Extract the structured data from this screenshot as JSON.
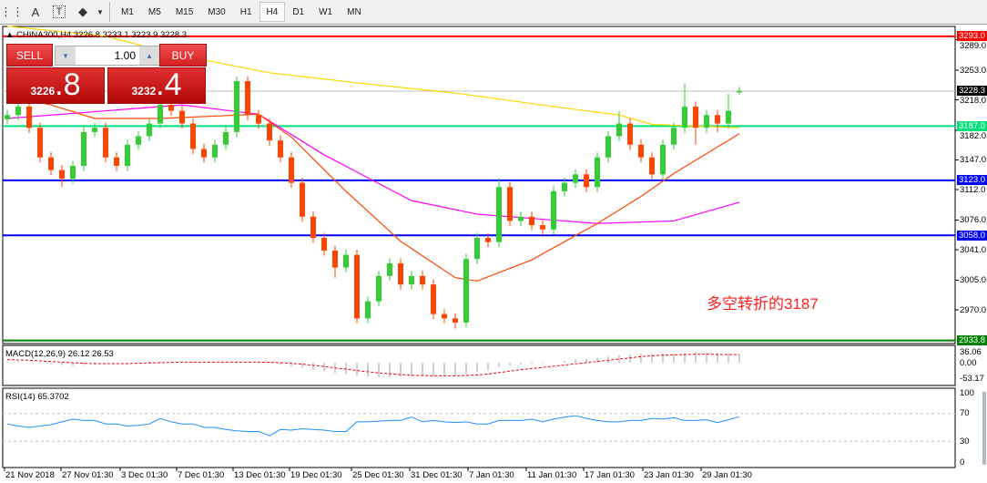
{
  "toolbar": {
    "icons": [
      "grid-icon",
      "text-icon",
      "text-label-icon",
      "arrows-icon",
      "dropdown-icon"
    ],
    "text_glyph": "A",
    "label_glyph": "T",
    "timeframes": [
      "M1",
      "M5",
      "M15",
      "M30",
      "H1",
      "H4",
      "D1",
      "W1",
      "MN"
    ],
    "active_timeframe": "H4"
  },
  "chart_header": {
    "symbol_line": "CHINA300,H4  3226.8 3233.1 3223.9 3228.3"
  },
  "trade_panel": {
    "sell_label": "SELL",
    "buy_label": "BUY",
    "lots": "1.00",
    "sell_price_small": "3226",
    "sell_price_big": ".8",
    "buy_price_small": "3232",
    "buy_price_big": ".4"
  },
  "annotation": "多空转折的3187",
  "macd_label": "MACD(12,26,9) 26.12 26.53",
  "rsi_label": "RSI(14) 65.3702",
  "chart_data": {
    "type": "candlestick",
    "symbol": "CHINA300",
    "timeframe": "H4",
    "ohlc": [
      [
        3195,
        3206,
        3189,
        3200
      ],
      [
        3200,
        3216,
        3194,
        3210
      ],
      [
        3210,
        3216,
        3179,
        3185
      ],
      [
        3185,
        3191,
        3144,
        3150
      ],
      [
        3150,
        3156,
        3129,
        3135
      ],
      [
        3135,
        3141,
        3115,
        3125
      ],
      [
        3125,
        3146,
        3119,
        3140
      ],
      [
        3140,
        3186,
        3134,
        3180
      ],
      [
        3180,
        3191,
        3174,
        3185
      ],
      [
        3185,
        3191,
        3144,
        3150
      ],
      [
        3150,
        3156,
        3134,
        3140
      ],
      [
        3140,
        3171,
        3134,
        3165
      ],
      [
        3165,
        3181,
        3159,
        3175
      ],
      [
        3175,
        3196,
        3169,
        3190
      ],
      [
        3190,
        3218,
        3184,
        3212
      ],
      [
        3212,
        3218,
        3199,
        3205
      ],
      [
        3205,
        3211,
        3184,
        3190
      ],
      [
        3190,
        3196,
        3154,
        3160
      ],
      [
        3160,
        3166,
        3144,
        3150
      ],
      [
        3150,
        3171,
        3144,
        3165
      ],
      [
        3165,
        3186,
        3159,
        3180
      ],
      [
        3180,
        3245,
        3174,
        3240
      ],
      [
        3240,
        3246,
        3194,
        3200
      ],
      [
        3200,
        3206,
        3184,
        3190
      ],
      [
        3190,
        3196,
        3164,
        3170
      ],
      [
        3170,
        3176,
        3144,
        3150
      ],
      [
        3150,
        3156,
        3114,
        3120
      ],
      [
        3120,
        3126,
        3074,
        3080
      ],
      [
        3080,
        3086,
        3049,
        3055
      ],
      [
        3055,
        3061,
        3034,
        3040
      ],
      [
        3040,
        3046,
        3008,
        3020
      ],
      [
        3020,
        3041,
        3014,
        3035
      ],
      [
        3035,
        3041,
        2954,
        2960
      ],
      [
        2960,
        2986,
        2954,
        2980
      ],
      [
        2980,
        3016,
        2974,
        3010
      ],
      [
        3010,
        3031,
        3004,
        3025
      ],
      [
        3025,
        3031,
        2994,
        3000
      ],
      [
        3000,
        3016,
        2994,
        3010
      ],
      [
        3010,
        3016,
        2994,
        3000
      ],
      [
        3000,
        3006,
        2959,
        2965
      ],
      [
        2965,
        2971,
        2954,
        2960
      ],
      [
        2960,
        2966,
        2948,
        2955
      ],
      [
        2955,
        3036,
        2949,
        3030
      ],
      [
        3030,
        3061,
        3024,
        3055
      ],
      [
        3055,
        3061,
        3044,
        3050
      ],
      [
        3050,
        3125,
        3044,
        3115
      ],
      [
        3115,
        3121,
        3069,
        3075
      ],
      [
        3075,
        3086,
        3069,
        3080
      ],
      [
        3080,
        3086,
        3064,
        3070
      ],
      [
        3070,
        3076,
        3058,
        3065
      ],
      [
        3065,
        3116,
        3059,
        3110
      ],
      [
        3110,
        3126,
        3104,
        3120
      ],
      [
        3120,
        3136,
        3114,
        3130
      ],
      [
        3130,
        3136,
        3109,
        3115
      ],
      [
        3115,
        3156,
        3109,
        3150
      ],
      [
        3150,
        3181,
        3144,
        3175
      ],
      [
        3175,
        3205,
        3169,
        3190
      ],
      [
        3190,
        3196,
        3159,
        3165
      ],
      [
        3165,
        3171,
        3144,
        3150
      ],
      [
        3150,
        3156,
        3124,
        3130
      ],
      [
        3130,
        3171,
        3124,
        3165
      ],
      [
        3165,
        3191,
        3159,
        3185
      ],
      [
        3185,
        3237,
        3179,
        3210
      ],
      [
        3210,
        3216,
        3165,
        3185
      ],
      [
        3185,
        3206,
        3179,
        3200
      ],
      [
        3200,
        3206,
        3180,
        3190
      ],
      [
        3190,
        3225,
        3184,
        3205
      ],
      [
        3226.8,
        3233.1,
        3223.9,
        3228.3
      ]
    ],
    "moving_averages": [
      {
        "color": "#ffd700",
        "points": [
          [
            0,
            3305
          ],
          [
            9,
            3293
          ],
          [
            16,
            3270
          ],
          [
            24,
            3250
          ],
          [
            32,
            3238
          ],
          [
            41,
            3226
          ],
          [
            50,
            3210
          ],
          [
            56,
            3200
          ],
          [
            59,
            3189
          ],
          [
            67,
            3185
          ]
        ]
      },
      {
        "color": "#ff00ff",
        "points": [
          [
            0,
            3196
          ],
          [
            16,
            3212
          ],
          [
            23,
            3201
          ],
          [
            29,
            3153
          ],
          [
            37,
            3099
          ],
          [
            43,
            3083
          ],
          [
            49,
            3077
          ],
          [
            54,
            3072
          ],
          [
            61,
            3075
          ],
          [
            67,
            3097
          ]
        ]
      },
      {
        "color": "#ff4500",
        "points": [
          [
            0,
            3223
          ],
          [
            4,
            3212
          ],
          [
            8,
            3196
          ],
          [
            14,
            3196
          ],
          [
            23,
            3201
          ],
          [
            26,
            3174
          ],
          [
            31,
            3110
          ],
          [
            36,
            3051
          ],
          [
            41,
            3008
          ],
          [
            43,
            3004
          ],
          [
            48,
            3029
          ],
          [
            54,
            3072
          ],
          [
            58,
            3104
          ],
          [
            61,
            3131
          ],
          [
            67,
            3178
          ]
        ]
      }
    ],
    "horizontal_levels": [
      {
        "value": "3293.0",
        "price": 3293,
        "color": "#ff0000"
      },
      {
        "value": "3228.3",
        "price": 3228.3,
        "color": "#000000",
        "line": "#c0c0c0"
      },
      {
        "value": "3187.0",
        "price": 3187,
        "color": "#00e07a"
      },
      {
        "value": "3123.0",
        "price": 3123,
        "color": "#0000ff"
      },
      {
        "value": "3058.0",
        "price": 3058,
        "color": "#0000ff"
      },
      {
        "value": "2933.8",
        "price": 2933.8,
        "color": "#008000"
      }
    ],
    "price_ticks": [
      "3289.0",
      "3253.0",
      "3218.0",
      "3182.0",
      "3147.0",
      "3112.0",
      "3076.0",
      "3041.0",
      "3005.0",
      "2970.0"
    ],
    "ylim": [
      2933.8,
      3293.0
    ],
    "x_tick_labels": [
      "21 Nov 2018",
      "27 Nov 01:30",
      "3 Dec 01:30",
      "7 Dec 01:30",
      "13 Dec 01:30",
      "19 Dec 01:30",
      "25 Dec 01:30",
      "31 Dec 01:30",
      "7 Jan 01:30",
      "11 Jan 01:30",
      "17 Jan 01:30",
      "23 Jan 01:30",
      "29 Jan 01:30"
    ],
    "colors": {
      "bull": "#32cd32",
      "bear": "#ff4500"
    },
    "macd": {
      "ticks": [
        "36.06",
        "0.00",
        "-53.17"
      ],
      "ylim": [
        -53.17,
        36.06
      ],
      "histogram": [
        5,
        3,
        0,
        -3,
        -5,
        -8,
        -10,
        -8,
        -6,
        -4,
        -2,
        0,
        2,
        4,
        5,
        6,
        5,
        3,
        2,
        1,
        2,
        4,
        3,
        1,
        -2,
        -6,
        -12,
        -18,
        -25,
        -30,
        -35,
        -40,
        -45,
        -48,
        -50,
        -50,
        -48,
        -47,
        -45,
        -44,
        -44,
        -45,
        -40,
        -32,
        -26,
        -15,
        -10,
        -6,
        -4,
        -2,
        2,
        6,
        10,
        12,
        16,
        20,
        25,
        28,
        30,
        30,
        30,
        30,
        32,
        35,
        33,
        32,
        30,
        26.12
      ],
      "signal": [
        10,
        9,
        8,
        6,
        4,
        2,
        0,
        -2,
        -3,
        -3,
        -3,
        -3,
        -2,
        -1,
        0,
        1,
        2,
        2,
        2,
        2,
        2,
        2,
        2,
        2,
        1,
        0,
        -2,
        -5,
        -9,
        -13,
        -18,
        -22,
        -27,
        -31,
        -35,
        -38,
        -41,
        -43,
        -44,
        -45,
        -45,
        -45,
        -44,
        -42,
        -39,
        -34,
        -29,
        -24,
        -20,
        -16,
        -12,
        -8,
        -4,
        0,
        4,
        8,
        12,
        16,
        20,
        23,
        25,
        26,
        27,
        28,
        28,
        27,
        27,
        26.53
      ]
    },
    "rsi": {
      "ticks": [
        "100",
        "70",
        "30",
        "0"
      ],
      "levels": [
        70,
        30
      ],
      "values": [
        55,
        52,
        50,
        52,
        54,
        58,
        62,
        60,
        60,
        55,
        55,
        52,
        53,
        55,
        63,
        58,
        55,
        55,
        50,
        50,
        47,
        45,
        44,
        44,
        38,
        47,
        46,
        48,
        47,
        46,
        44,
        44,
        58,
        58,
        59,
        60,
        60,
        65,
        58,
        60,
        58,
        57,
        58,
        55,
        55,
        60,
        60,
        60,
        62,
        58,
        62,
        65,
        67,
        63,
        60,
        58,
        58,
        60,
        60,
        63,
        62,
        64,
        60,
        60,
        61,
        57,
        61,
        65.37
      ]
    }
  }
}
